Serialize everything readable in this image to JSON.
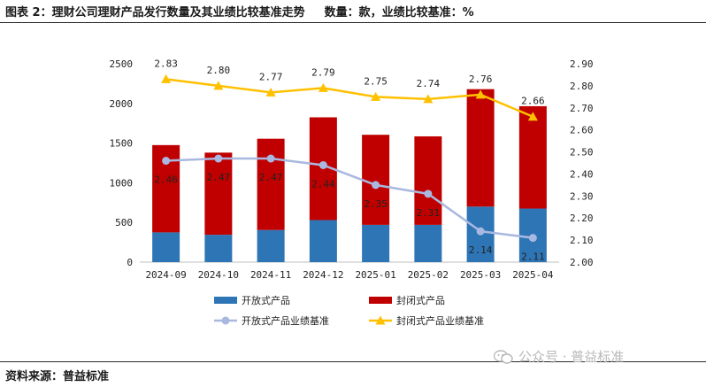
{
  "header": {
    "title": "图表 2：理财公司理财产品发行数量及其业绩比较基准走势",
    "units": "数量：款，业绩比较基准：%"
  },
  "footer": {
    "source": "资料来源：普益标准",
    "watermark": "公众号 · 普益标准"
  },
  "colors": {
    "open": "#2E75B6",
    "closed": "#C00000",
    "open_line": "#A9B8E0",
    "closed_line": "#FFC000"
  },
  "chart_data": {
    "type": "bar",
    "stacked": true,
    "categories": [
      "2024-09",
      "2024-10",
      "2024-11",
      "2024-12",
      "2025-01",
      "2025-02",
      "2025-03",
      "2025-04"
    ],
    "series": [
      {
        "name": "开放式产品",
        "type": "bar",
        "axis": "left",
        "values": [
          375,
          345,
          405,
          530,
          470,
          470,
          700,
          675
        ]
      },
      {
        "name": "封闭式产品",
        "type": "bar",
        "axis": "left",
        "values": [
          1100,
          1035,
          1150,
          1295,
          1135,
          1115,
          1480,
          1290
        ]
      },
      {
        "name": "开放式产品业绩基准",
        "type": "line",
        "axis": "right",
        "values": [
          2.46,
          2.47,
          2.47,
          2.44,
          2.35,
          2.31,
          2.14,
          2.11
        ]
      },
      {
        "name": "封闭式产品业绩基准",
        "type": "line",
        "axis": "right",
        "values": [
          2.83,
          2.8,
          2.77,
          2.79,
          2.75,
          2.74,
          2.76,
          2.66
        ]
      }
    ],
    "y_left": {
      "min": 0,
      "max": 2500,
      "step": 500,
      "ticks": [
        "0",
        "500",
        "1000",
        "1500",
        "2000",
        "2500"
      ]
    },
    "y_right": {
      "min": 2.0,
      "max": 2.9,
      "step": 0.1,
      "ticks": [
        "2.00",
        "2.10",
        "2.20",
        "2.30",
        "2.40",
        "2.50",
        "2.60",
        "2.70",
        "2.80",
        "2.90"
      ]
    },
    "line_labels": {
      "open": [
        "2.46",
        "2.47",
        "2.47",
        "2.44",
        "2.35",
        "2.31",
        "2.14",
        "2.11"
      ],
      "closed": [
        "2.83",
        "2.80",
        "2.77",
        "2.79",
        "2.75",
        "2.74",
        "2.76",
        "2.66"
      ]
    },
    "legend_position": "bottom",
    "grid": false
  }
}
